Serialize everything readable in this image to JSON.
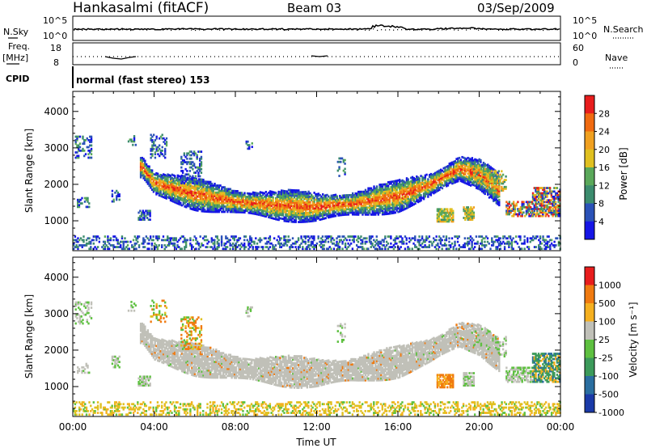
{
  "header": {
    "station": "Hankasalmi (fitACF)",
    "beam": "Beam 03",
    "date": "03/Sep/2009"
  },
  "top_strip": {
    "left_label": "N.Sky",
    "right_label": "N.Search",
    "left_ticks": [
      "10^5",
      "10^0"
    ],
    "right_ticks": [
      "10^5",
      "10^0"
    ]
  },
  "freq_strip": {
    "left_label_1": "Freq.",
    "left_label_2": "[MHz]",
    "right_label": "Nave",
    "left_ticks": [
      "18",
      "8"
    ],
    "right_ticks": [
      "60",
      "0"
    ]
  },
  "cpid": {
    "label": "CPID",
    "text": "normal (fast stereo) 153"
  },
  "chart_data": [
    {
      "type": "heatmap",
      "panel": "power",
      "ylabel": "Slant Range [km]",
      "xlabel": "Time UT",
      "x_ticks": [
        "00:00",
        "04:00",
        "08:00",
        "12:00",
        "16:00",
        "20:00",
        "00:00"
      ],
      "y_ticks": [
        1000,
        2000,
        3000,
        4000
      ],
      "x_range_hours": [
        0,
        24
      ],
      "y_range_km": [
        180,
        4550
      ],
      "colorbar": {
        "label": "Power [dB]",
        "ticks": [
          "28",
          "24",
          "20",
          "16",
          "12",
          "8",
          "4"
        ],
        "colors": [
          "#1515e6",
          "#2b52b8",
          "#3c8c6e",
          "#5aa85a",
          "#e0c020",
          "#f0a020",
          "#f06a10",
          "#e81d1d"
        ]
      },
      "echo_band": [
        {
          "t": 3.4,
          "range": 2450
        },
        {
          "t": 4.0,
          "range": 2000
        },
        {
          "t": 6.0,
          "range": 1700
        },
        {
          "t": 8.0,
          "range": 1500
        },
        {
          "t": 10.0,
          "range": 1400
        },
        {
          "t": 12.0,
          "range": 1350
        },
        {
          "t": 14.0,
          "range": 1450
        },
        {
          "t": 16.0,
          "range": 1650
        },
        {
          "t": 17.5,
          "range": 1950
        },
        {
          "t": 19.0,
          "range": 2400
        },
        {
          "t": 20.0,
          "range": 2250
        },
        {
          "t": 21.0,
          "range": 1800
        }
      ]
    },
    {
      "type": "heatmap",
      "panel": "velocity",
      "ylabel": "Slant Range [km]",
      "xlabel": "Time UT",
      "x_ticks": [
        "00:00",
        "04:00",
        "08:00",
        "12:00",
        "16:00",
        "20:00",
        "00:00"
      ],
      "y_ticks": [
        1000,
        2000,
        3000,
        4000
      ],
      "x_range_hours": [
        0,
        24
      ],
      "y_range_km": [
        180,
        4550
      ],
      "colorbar": {
        "label": "Velocity [m s⁻¹]",
        "ticks": [
          "1000",
          "500",
          "100",
          "25",
          "-25",
          "-100",
          "-500",
          "-1000"
        ],
        "colors": [
          "#1a3aa8",
          "#2a6ea0",
          "#3c9a5a",
          "#5ec040",
          "#c0c0b8",
          "#f5b020",
          "#f07a10",
          "#e81d1d"
        ]
      }
    }
  ]
}
